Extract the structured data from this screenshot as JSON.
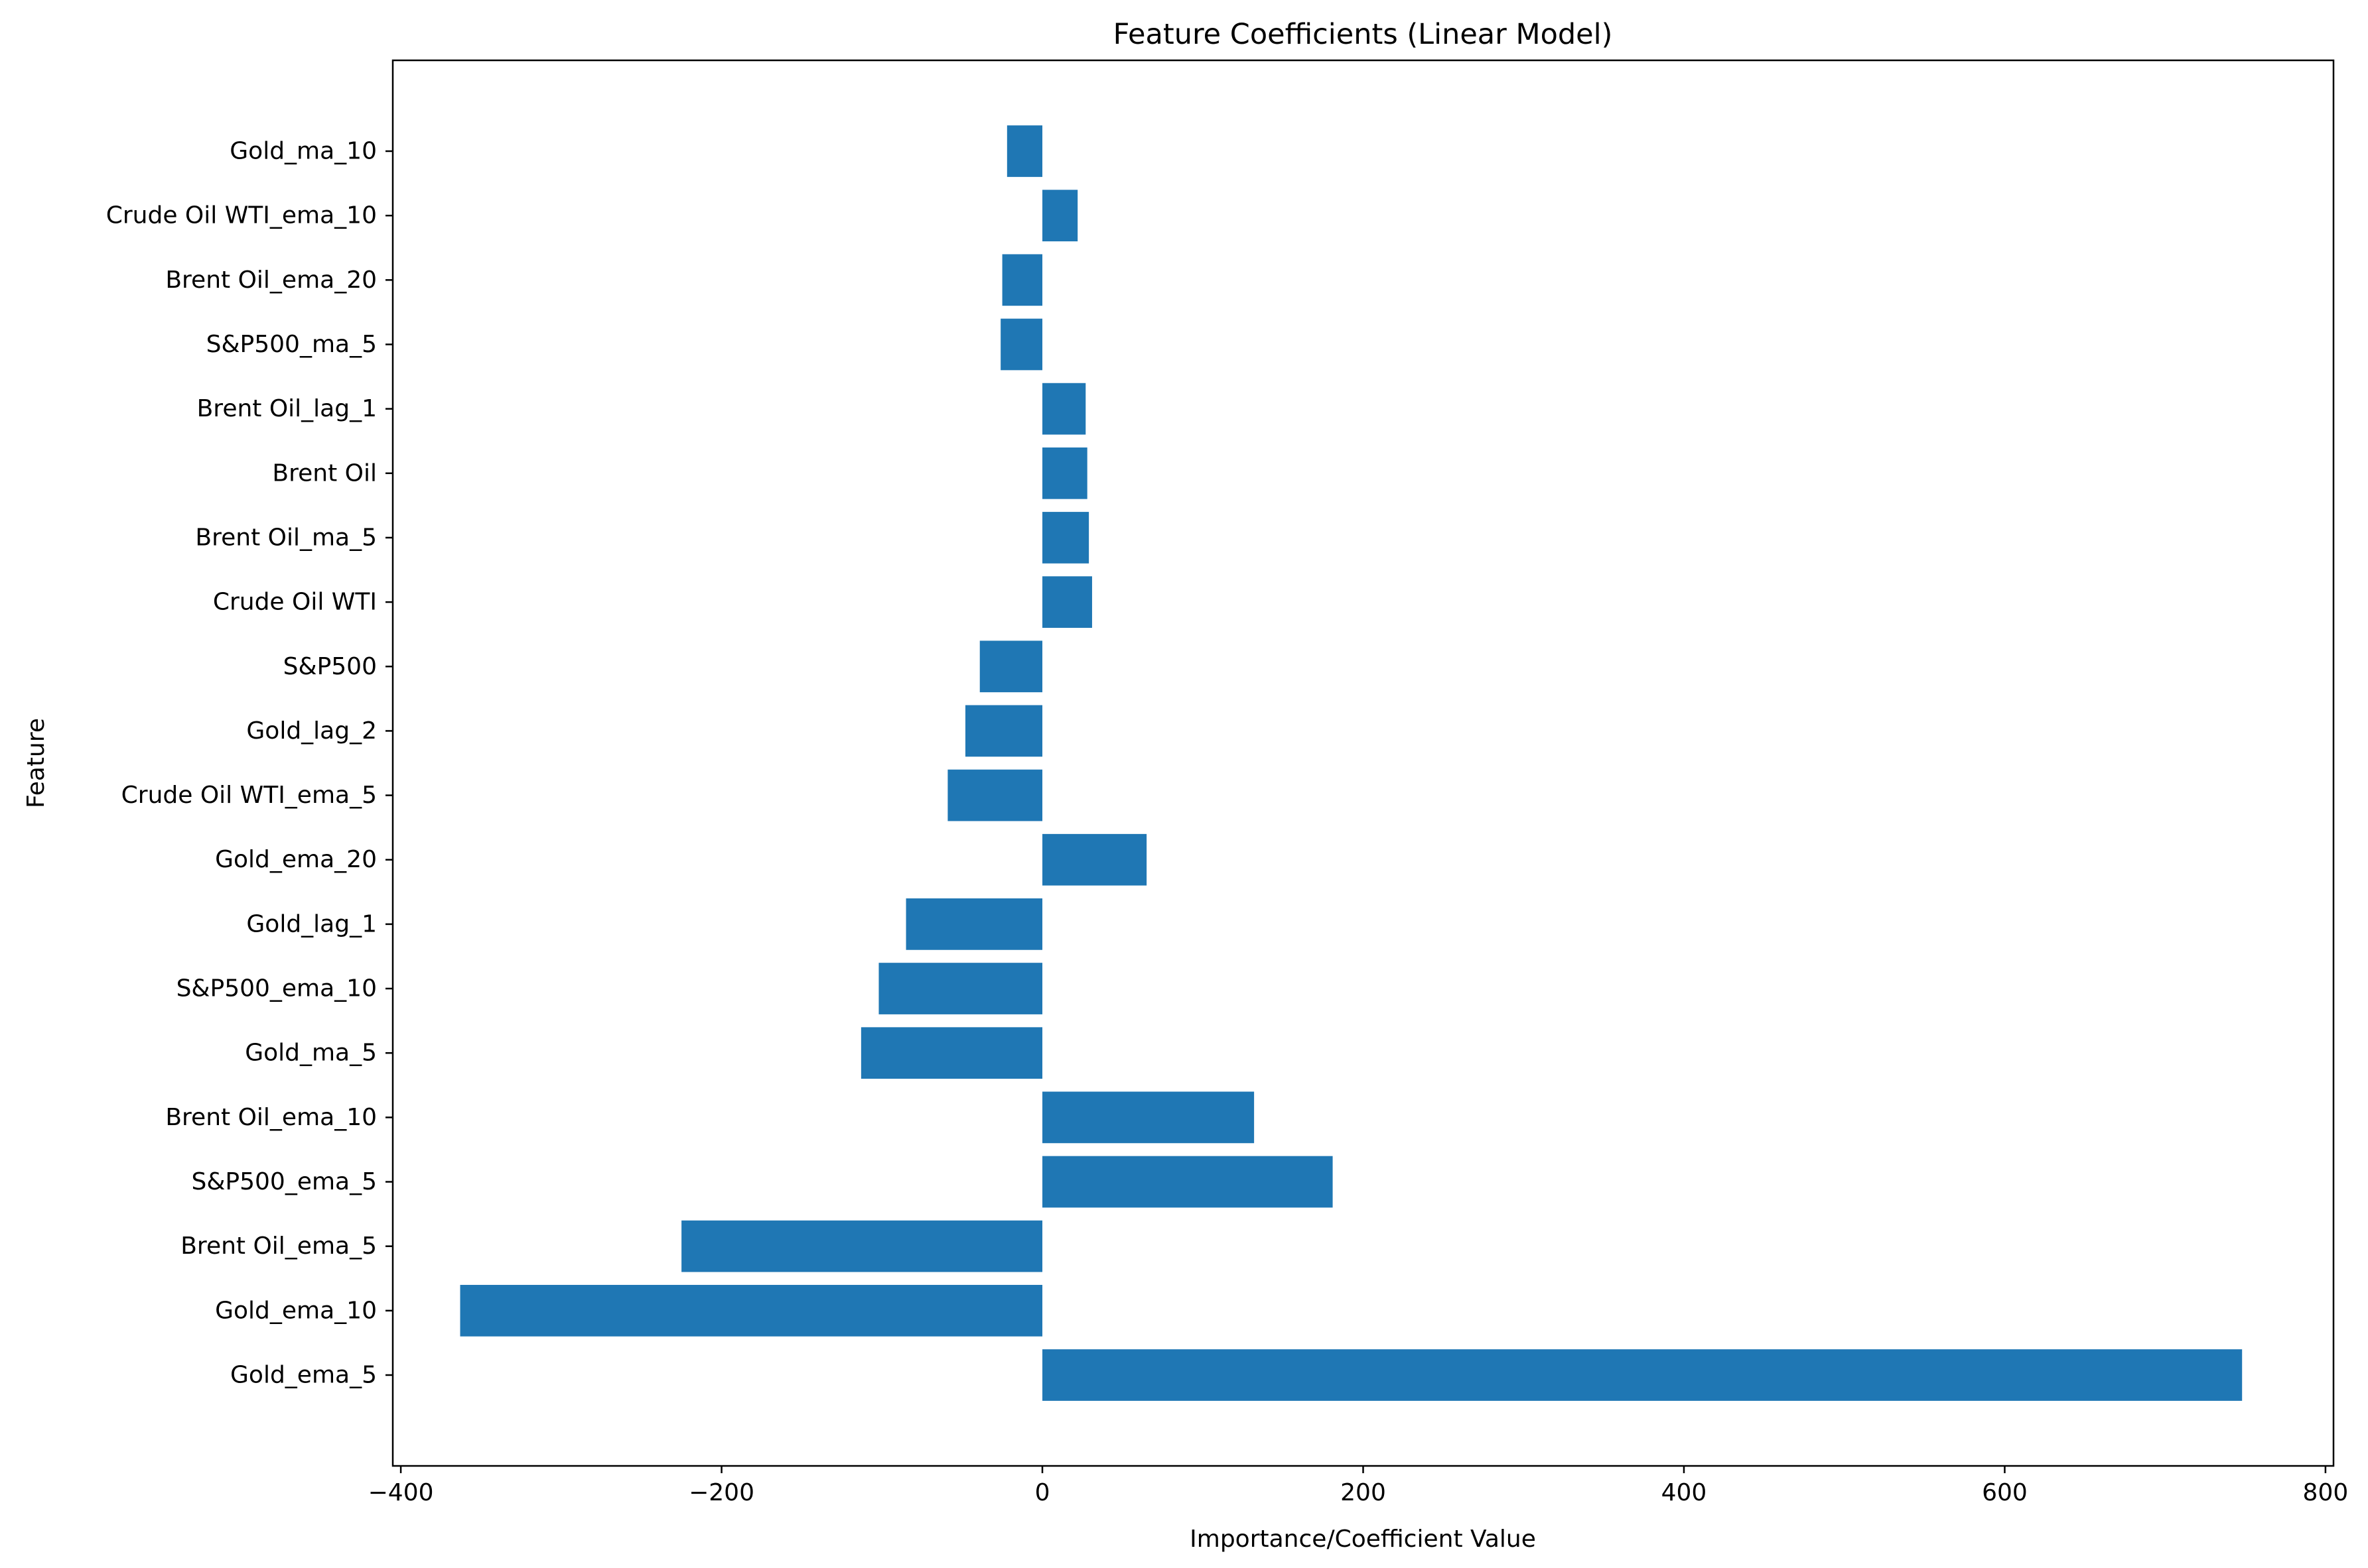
{
  "chart_data": {
    "type": "bar",
    "orientation": "horizontal",
    "title": "Feature Coefficients (Linear Model)",
    "xlabel": "Importance/Coefficient Value",
    "ylabel": "Feature",
    "xlim": [
      -405,
      805
    ],
    "xticks": [
      -400,
      -200,
      0,
      200,
      400,
      600,
      800
    ],
    "xtick_labels": [
      "−400",
      "−200",
      "0",
      "200",
      "400",
      "600",
      "800"
    ],
    "grid": false,
    "legend": "none",
    "bar_color": "#1f77b4",
    "categories": [
      "Gold_ema_5",
      "Gold_ema_10",
      "Brent Oil_ema_5",
      "S&P500_ema_5",
      "Brent Oil_ema_10",
      "Gold_ma_5",
      "S&P500_ema_10",
      "Gold_lag_1",
      "Gold_ema_20",
      "Crude Oil WTI_ema_5",
      "Gold_lag_2",
      "S&P500",
      "Crude Oil WTI",
      "Brent Oil_ma_5",
      "Brent Oil",
      "Brent Oil_lag_1",
      "S&P500_ma_5",
      "Brent Oil_ema_20",
      "Crude Oil WTI_ema_10",
      "Gold_ma_10"
    ],
    "values": [
      748,
      -363,
      -225,
      181,
      132,
      -113,
      -102,
      -85,
      65,
      -59,
      -48,
      -39,
      31,
      29,
      28,
      27,
      -26,
      -25,
      22,
      -22
    ]
  }
}
